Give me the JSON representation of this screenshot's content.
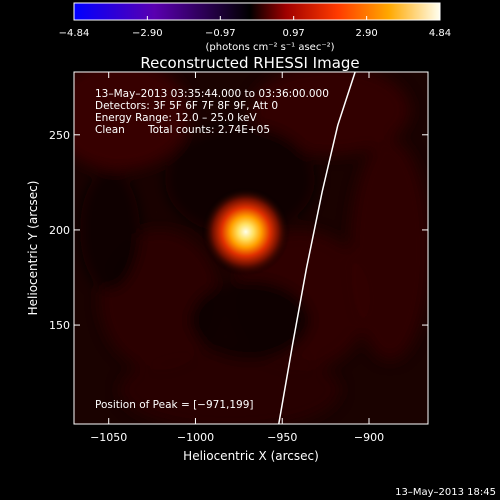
{
  "chart_data": {
    "type": "heatmap",
    "title": "Reconstructed RHESSI Image",
    "xlabel": "Heliocentric X (arcsec)",
    "ylabel": "Heliocentric Y (arcsec)",
    "xlim": [
      -1070,
      -866
    ],
    "ylim": [
      98,
      283
    ],
    "x_ticks": [
      -1050,
      -1000,
      -950,
      -900
    ],
    "x_tick_labels": [
      "−1050",
      "−1000",
      "−950",
      "−900"
    ],
    "y_ticks": [
      150,
      200,
      250
    ],
    "y_tick_labels": [
      "150",
      "200",
      "250"
    ],
    "colorbar": {
      "range": [
        -4.84,
        4.84
      ],
      "ticks": [
        -4.84,
        -2.9,
        -0.97,
        0.97,
        2.9,
        4.84
      ],
      "tick_labels": [
        "−4.84",
        "−2.90",
        "−0.97",
        "0.97",
        "2.90",
        "4.84"
      ],
      "unit_label": "(photons cm⁻² s⁻¹ asec⁻²)",
      "colors": [
        "#0000ff",
        "#6a00a8",
        "#000000",
        "#b00000",
        "#ff4000",
        "#ffb000",
        "#ffffe0"
      ]
    },
    "annotations": {
      "time_range": "13–May–2013 03:35:44.000 to 03:36:00.000",
      "detectors": "Detectors: 3F 5F 6F 7F 8F 9F, Att 0",
      "energy_range": "Energy Range: 12.0 – 25.0 keV",
      "clean": "Clean",
      "total_counts": "Total counts: 2.74E+05",
      "peak_position": "Position of Peak = [−971,199]"
    },
    "peak": {
      "x": -971,
      "y": 199
    },
    "limb_curve": [
      {
        "x": -952,
        "y": 98
      },
      {
        "x": -944,
        "y": 140
      },
      {
        "x": -936,
        "y": 180
      },
      {
        "x": -927,
        "y": 220
      },
      {
        "x": -918,
        "y": 255
      },
      {
        "x": -908,
        "y": 283
      }
    ]
  },
  "footer": {
    "timestamp": "13–May–2013 18:45"
  }
}
